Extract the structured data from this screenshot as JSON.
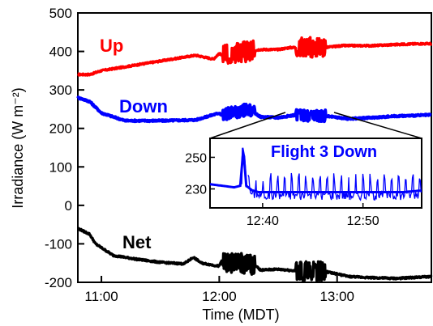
{
  "chart_data": [
    {
      "type": "line",
      "xlabel": "Time (MDT)",
      "ylabel": "Irradiance (W m⁻²)",
      "xlim": [
        10.8,
        13.8
      ],
      "ylim": [
        -200,
        500
      ],
      "xticks": [
        11,
        12,
        13
      ],
      "xtick_labels": [
        "11:00",
        "12:00",
        "13:00"
      ],
      "yticks": [
        -200,
        -100,
        0,
        100,
        200,
        300,
        400,
        500
      ],
      "ytick_labels": [
        "-200",
        "-100",
        "0",
        "100",
        "200",
        "300",
        "400",
        "500"
      ],
      "grid": false,
      "legend": "none (series labeled directly)",
      "flight_windows": [
        [
          12.03,
          12.3
        ],
        [
          12.65,
          12.9
        ]
      ],
      "series": [
        {
          "name": "Up",
          "color": "#ff0000",
          "x": [
            10.8,
            10.9,
            11.0,
            11.1,
            11.3,
            11.5,
            11.7,
            11.8,
            11.95,
            12.0,
            12.02,
            12.35,
            12.5,
            12.6,
            12.65,
            12.9,
            12.95,
            13.05,
            13.3,
            13.5,
            13.7,
            13.8
          ],
          "y": [
            340,
            340,
            350,
            355,
            365,
            375,
            385,
            390,
            380,
            395,
            390,
            405,
            405,
            410,
            410,
            410,
            412,
            415,
            415,
            418,
            420,
            420
          ]
        },
        {
          "name": "Down",
          "color": "#0000ff",
          "x": [
            10.8,
            10.9,
            11.0,
            11.2,
            11.5,
            11.8,
            12.0,
            12.02,
            12.25,
            12.35,
            12.5,
            12.65,
            12.9,
            13.1,
            13.3,
            13.5,
            13.8
          ],
          "y": [
            280,
            270,
            240,
            220,
            220,
            222,
            240,
            235,
            250,
            230,
            228,
            235,
            232,
            225,
            228,
            232,
            235
          ]
        },
        {
          "name": "Net",
          "color": "#000000",
          "x": [
            10.8,
            10.9,
            10.95,
            11.0,
            11.1,
            11.3,
            11.5,
            11.7,
            11.78,
            11.85,
            12.0,
            12.02,
            12.3,
            12.35,
            12.5,
            12.65,
            12.9,
            12.95,
            13.1,
            13.3,
            13.5,
            13.8
          ],
          "y": [
            -60,
            -75,
            -100,
            -110,
            -130,
            -140,
            -148,
            -152,
            -135,
            -150,
            -158,
            -145,
            -155,
            -168,
            -166,
            -170,
            -172,
            -175,
            -185,
            -188,
            -190,
            -185
          ]
        }
      ]
    },
    {
      "type": "line",
      "title": "Flight 3 Down",
      "xtick_labels": [
        "12:40",
        "12:50"
      ],
      "xticks": [
        12.667,
        12.833
      ],
      "yticks": [
        230,
        250
      ],
      "ytick_labels": [
        "230",
        "250"
      ],
      "xlim": [
        12.58,
        12.93
      ],
      "ylim": [
        218,
        262
      ],
      "series": [
        {
          "color": "#0000ff",
          "x": [
            12.58,
            12.6,
            12.62,
            12.63,
            12.635,
            12.64,
            12.65,
            12.66,
            12.67,
            12.7,
            12.75,
            12.8,
            12.85,
            12.9,
            12.93
          ],
          "y": [
            233,
            232,
            231,
            232,
            255,
            232,
            229,
            228,
            228,
            228,
            228,
            228,
            228,
            228,
            229
          ]
        }
      ]
    }
  ],
  "labels": {
    "up": "Up",
    "down": "Down",
    "net": "Net"
  },
  "colors": {
    "up": "#ff0000",
    "down": "#0000ff",
    "net": "#000000",
    "axes": "#000000"
  }
}
